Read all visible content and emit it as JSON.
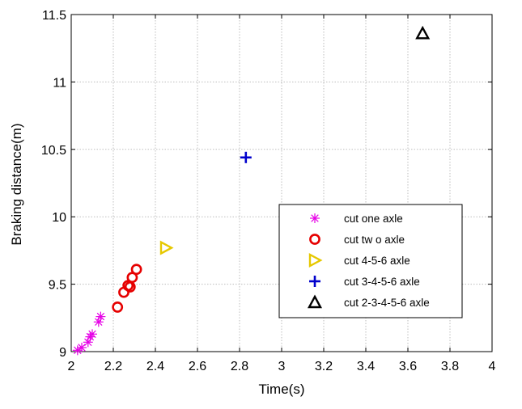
{
  "chart_data": {
    "type": "scatter",
    "title": "",
    "xlabel": "Time(s)",
    "ylabel": "Braking distance(m)",
    "xlim": [
      2,
      4
    ],
    "ylim": [
      9,
      11.5
    ],
    "xticks": [
      "2",
      "2.2",
      "2.4",
      "2.6",
      "2.8",
      "3",
      "3.2",
      "3.4",
      "3.6",
      "3.8",
      "4"
    ],
    "yticks": [
      "9",
      "9.5",
      "10",
      "10.5",
      "11",
      "11.5"
    ],
    "grid": true,
    "legend_position": "lower-right",
    "series": [
      {
        "name": "cut one axle",
        "marker": "star",
        "color": "#e600e6",
        "points": [
          {
            "x": 2.03,
            "y": 9.01
          },
          {
            "x": 2.05,
            "y": 9.03
          },
          {
            "x": 2.08,
            "y": 9.07
          },
          {
            "x": 2.09,
            "y": 9.11
          },
          {
            "x": 2.1,
            "y": 9.13
          },
          {
            "x": 2.13,
            "y": 9.22
          },
          {
            "x": 2.14,
            "y": 9.26
          }
        ]
      },
      {
        "name": "cut tw o axle",
        "marker": "circle",
        "color": "#e60000",
        "points": [
          {
            "x": 2.22,
            "y": 9.33
          },
          {
            "x": 2.25,
            "y": 9.44
          },
          {
            "x": 2.27,
            "y": 9.49
          },
          {
            "x": 2.28,
            "y": 9.48
          },
          {
            "x": 2.29,
            "y": 9.55
          },
          {
            "x": 2.31,
            "y": 9.61
          }
        ]
      },
      {
        "name": "cut 4-5-6 axle",
        "marker": "triangle-right",
        "color": "#e6c800",
        "points": [
          {
            "x": 2.45,
            "y": 9.77
          }
        ]
      },
      {
        "name": "cut 3-4-5-6 axle",
        "marker": "plus",
        "color": "#0000cc",
        "points": [
          {
            "x": 2.83,
            "y": 10.44
          }
        ]
      },
      {
        "name": "cut 2-3-4-5-6 axle",
        "marker": "triangle-up",
        "color": "#000000",
        "points": [
          {
            "x": 3.67,
            "y": 11.36
          }
        ]
      }
    ]
  }
}
